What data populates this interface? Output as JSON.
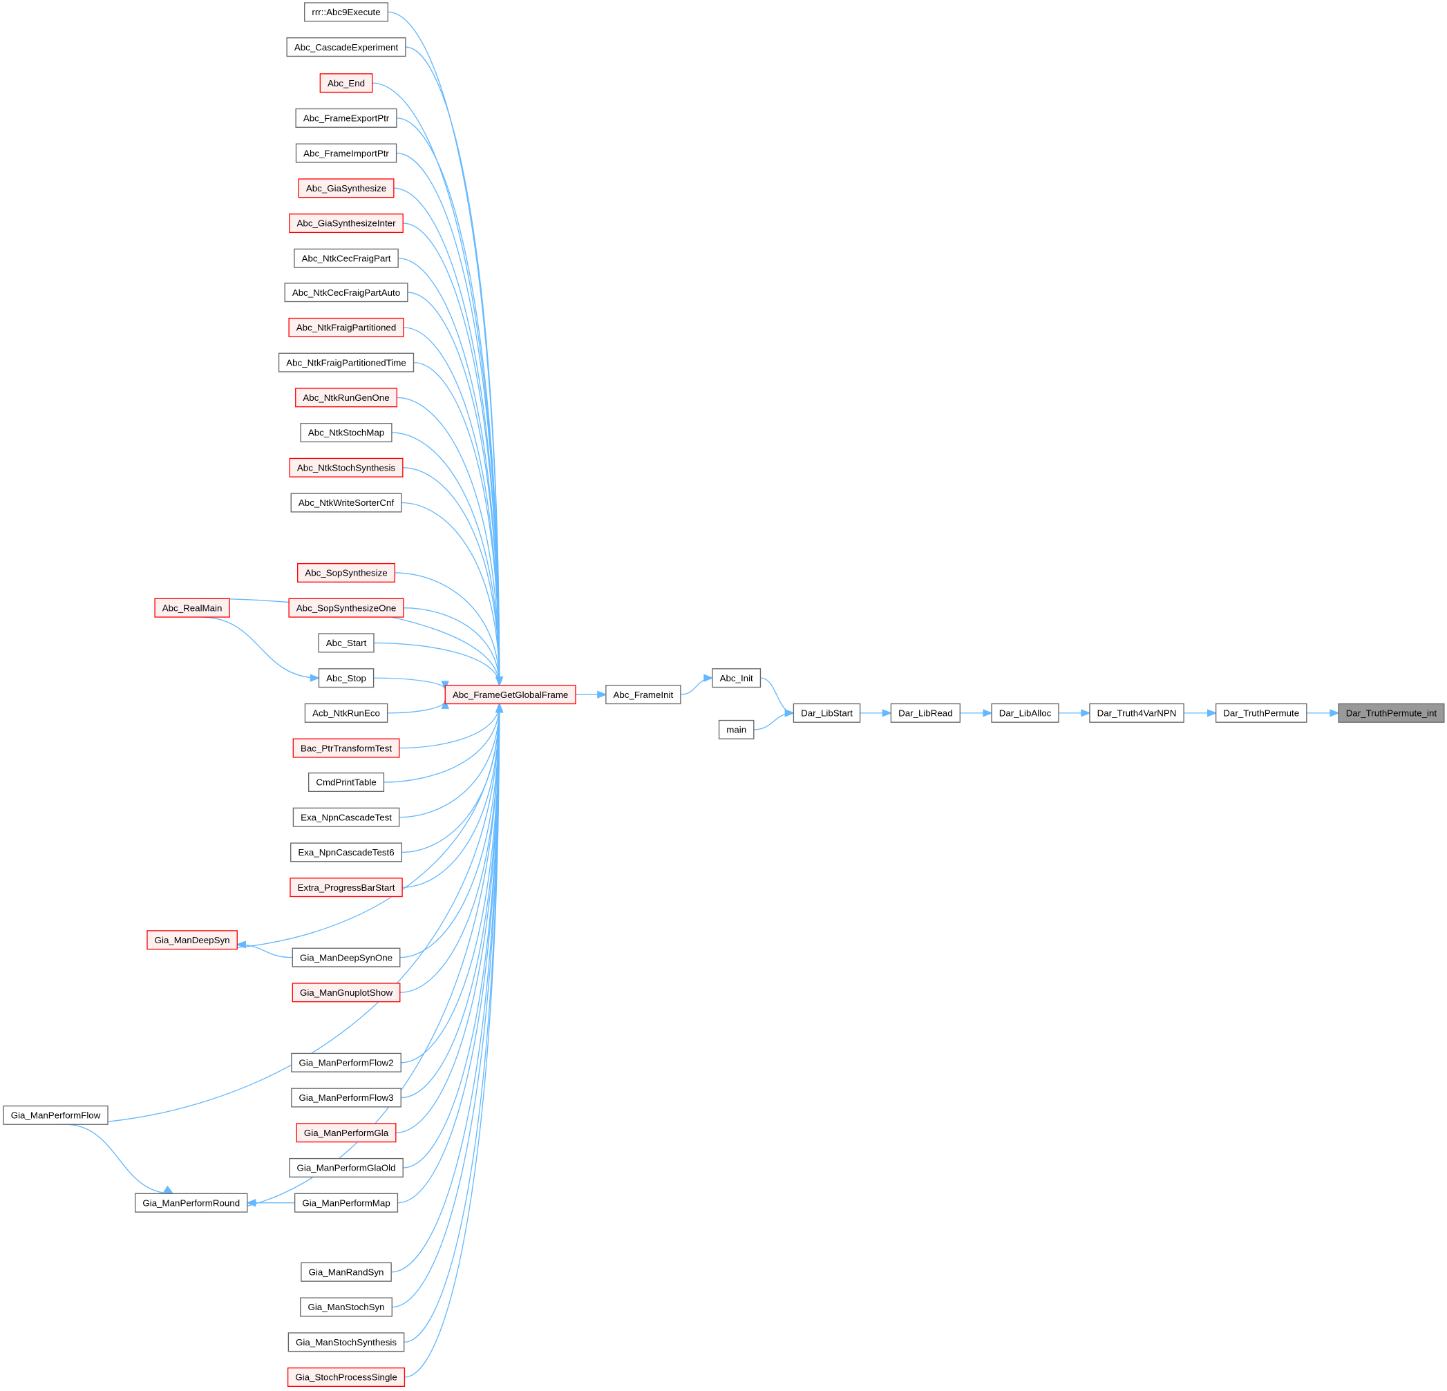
{
  "colors": {
    "edge": "#63b8ff",
    "plain_border": "#666666",
    "plain_fill": "#ffffff",
    "red_border": "#ff0000",
    "red_fill": "#fff0f0",
    "current_fill": "#999999",
    "current_border": "#666666"
  },
  "nodes": [
    {
      "id": "n0",
      "label": "rrr::Abc9Execute",
      "style": "plain"
    },
    {
      "id": "n1",
      "label": "Abc_CascadeExperiment",
      "style": "plain"
    },
    {
      "id": "n2",
      "label": "Abc_End",
      "style": "red"
    },
    {
      "id": "n3",
      "label": "Abc_FrameExportPtr",
      "style": "plain"
    },
    {
      "id": "n4",
      "label": "Abc_FrameImportPtr",
      "style": "plain"
    },
    {
      "id": "n5",
      "label": "Abc_GiaSynthesize",
      "style": "red"
    },
    {
      "id": "n6",
      "label": "Abc_GiaSynthesizeInter",
      "style": "red"
    },
    {
      "id": "n7",
      "label": "Abc_NtkCecFraigPart",
      "style": "plain"
    },
    {
      "id": "n8",
      "label": "Abc_NtkCecFraigPartAuto",
      "style": "plain"
    },
    {
      "id": "n9",
      "label": "Abc_NtkFraigPartitioned",
      "style": "red"
    },
    {
      "id": "n10",
      "label": "Abc_NtkFraigPartitionedTime",
      "style": "plain"
    },
    {
      "id": "n11",
      "label": "Abc_NtkRunGenOne",
      "style": "red"
    },
    {
      "id": "n12",
      "label": "Abc_NtkStochMap",
      "style": "plain"
    },
    {
      "id": "n13",
      "label": "Abc_NtkStochSynthesis",
      "style": "red"
    },
    {
      "id": "n14",
      "label": "Abc_NtkWriteSorterCnf",
      "style": "plain"
    },
    {
      "id": "n15",
      "label": "Abc_SopSynthesize",
      "style": "red"
    },
    {
      "id": "n16",
      "label": "Abc_SopSynthesizeOne",
      "style": "red"
    },
    {
      "id": "n17",
      "label": "Abc_Start",
      "style": "plain"
    },
    {
      "id": "n18",
      "label": "Abc_Stop",
      "style": "plain"
    },
    {
      "id": "n19",
      "label": "Acb_NtkRunEco",
      "style": "plain"
    },
    {
      "id": "n20",
      "label": "Bac_PtrTransformTest",
      "style": "red"
    },
    {
      "id": "n21",
      "label": "CmdPrintTable",
      "style": "plain"
    },
    {
      "id": "n22",
      "label": "Exa_NpnCascadeTest",
      "style": "plain"
    },
    {
      "id": "n23",
      "label": "Exa_NpnCascadeTest6",
      "style": "plain"
    },
    {
      "id": "n24",
      "label": "Extra_ProgressBarStart",
      "style": "red"
    },
    {
      "id": "n25",
      "label": "Gia_ManDeepSynOne",
      "style": "plain"
    },
    {
      "id": "n26",
      "label": "Gia_ManGnuplotShow",
      "style": "red"
    },
    {
      "id": "n27",
      "label": "Gia_ManPerformFlow2",
      "style": "plain"
    },
    {
      "id": "n28",
      "label": "Gia_ManPerformFlow3",
      "style": "plain"
    },
    {
      "id": "n29",
      "label": "Gia_ManPerformGla",
      "style": "red"
    },
    {
      "id": "n30",
      "label": "Gia_ManPerformGlaOld",
      "style": "plain"
    },
    {
      "id": "n31",
      "label": "Gia_ManPerformMap",
      "style": "plain"
    },
    {
      "id": "n32",
      "label": "Gia_ManRandSyn",
      "style": "plain"
    },
    {
      "id": "n33",
      "label": "Gia_ManStochSyn",
      "style": "plain"
    },
    {
      "id": "n34",
      "label": "Gia_ManStochSynthesis",
      "style": "plain"
    },
    {
      "id": "n35",
      "label": "Gia_StochProcessSingle",
      "style": "red"
    },
    {
      "id": "rm",
      "label": "Abc_RealMain",
      "style": "red"
    },
    {
      "id": "ds",
      "label": "Gia_ManDeepSyn",
      "style": "red"
    },
    {
      "id": "pf",
      "label": "Gia_ManPerformFlow",
      "style": "plain"
    },
    {
      "id": "pr",
      "label": "Gia_ManPerformRound",
      "style": "plain"
    },
    {
      "id": "gg",
      "label": "Abc_FrameGetGlobalFrame",
      "style": "red"
    },
    {
      "id": "fi",
      "label": "Abc_FrameInit",
      "style": "plain"
    },
    {
      "id": "ai",
      "label": "Abc_Init",
      "style": "plain"
    },
    {
      "id": "mn",
      "label": "main",
      "style": "plain"
    },
    {
      "id": "ls",
      "label": "Dar_LibStart",
      "style": "plain"
    },
    {
      "id": "lr",
      "label": "Dar_LibRead",
      "style": "plain"
    },
    {
      "id": "la",
      "label": "Dar_LibAlloc",
      "style": "plain"
    },
    {
      "id": "tv",
      "label": "Dar_Truth4VarNPN",
      "style": "plain"
    },
    {
      "id": "tp",
      "label": "Dar_TruthPermute",
      "style": "plain"
    },
    {
      "id": "ti",
      "label": "Dar_TruthPermute_int",
      "style": "current"
    }
  ],
  "edges": [
    [
      "n0",
      "gg"
    ],
    [
      "n1",
      "gg"
    ],
    [
      "n2",
      "gg"
    ],
    [
      "n3",
      "gg"
    ],
    [
      "n4",
      "gg"
    ],
    [
      "n5",
      "gg"
    ],
    [
      "n6",
      "gg"
    ],
    [
      "n7",
      "gg"
    ],
    [
      "n8",
      "gg"
    ],
    [
      "n9",
      "gg"
    ],
    [
      "n10",
      "gg"
    ],
    [
      "n11",
      "gg"
    ],
    [
      "n12",
      "gg"
    ],
    [
      "n13",
      "gg"
    ],
    [
      "n14",
      "gg"
    ],
    [
      "n15",
      "gg"
    ],
    [
      "n16",
      "gg"
    ],
    [
      "n17",
      "gg"
    ],
    [
      "n18",
      "gg"
    ],
    [
      "n19",
      "gg"
    ],
    [
      "n20",
      "gg"
    ],
    [
      "n21",
      "gg"
    ],
    [
      "n22",
      "gg"
    ],
    [
      "n23",
      "gg"
    ],
    [
      "n24",
      "gg"
    ],
    [
      "n25",
      "gg"
    ],
    [
      "n26",
      "gg"
    ],
    [
      "n27",
      "gg"
    ],
    [
      "n28",
      "gg"
    ],
    [
      "n29",
      "gg"
    ],
    [
      "n30",
      "gg"
    ],
    [
      "n31",
      "gg"
    ],
    [
      "n32",
      "gg"
    ],
    [
      "n33",
      "gg"
    ],
    [
      "n34",
      "gg"
    ],
    [
      "n35",
      "gg"
    ],
    [
      "rm",
      "gg"
    ],
    [
      "rm",
      "n18"
    ],
    [
      "ds",
      "gg"
    ],
    [
      "n25",
      "ds"
    ],
    [
      "pf",
      "gg"
    ],
    [
      "pf",
      "pr"
    ],
    [
      "pr",
      "gg"
    ],
    [
      "n31",
      "pr"
    ],
    [
      "gg",
      "fi"
    ],
    [
      "fi",
      "ai"
    ],
    [
      "ai",
      "ls"
    ],
    [
      "mn",
      "ls"
    ],
    [
      "ls",
      "lr"
    ],
    [
      "lr",
      "la"
    ],
    [
      "la",
      "tv"
    ],
    [
      "tv",
      "tp"
    ],
    [
      "tp",
      "ti"
    ]
  ]
}
